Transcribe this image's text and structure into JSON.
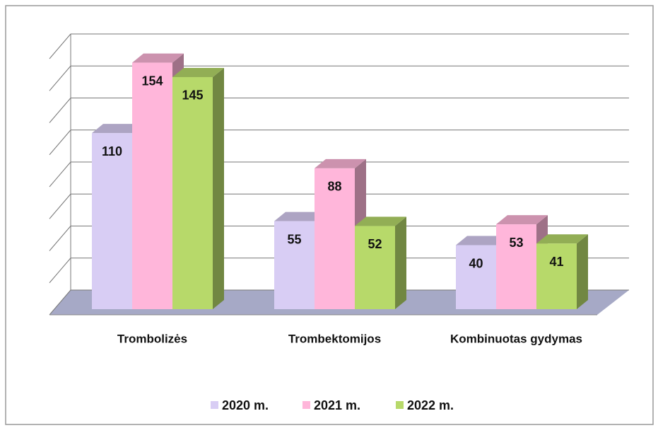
{
  "chart_data": {
    "type": "bar3d",
    "categories": [
      "Trombolizės",
      "Trombektomijos",
      "Kombinuotas gydymas"
    ],
    "series": [
      {
        "name": "2020 m.",
        "color": "#d8cdf4",
        "values": [
          110,
          55,
          40
        ]
      },
      {
        "name": "2021 m.",
        "color": "#ffb6da",
        "values": [
          154,
          88,
          53
        ]
      },
      {
        "name": "2022 m.",
        "color": "#b7d96a",
        "values": [
          145,
          52,
          41
        ]
      }
    ],
    "ylim": [
      0,
      160
    ],
    "yticks": [
      0,
      20,
      40,
      60,
      80,
      100,
      120,
      140,
      160
    ],
    "grid": true
  }
}
